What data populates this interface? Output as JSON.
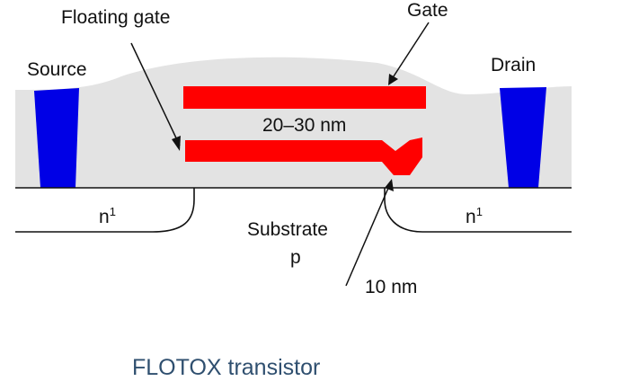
{
  "labels": {
    "floating_gate": "Floating gate",
    "gate": "Gate",
    "source": "Source",
    "drain": "Drain",
    "oxide_thickness": "20–30 nm",
    "n_left_base": "n",
    "n_left_sup": "1",
    "n_right_base": "n",
    "n_right_sup": "1",
    "substrate_line1": "Substrate",
    "substrate_line2": "p",
    "tunnel_oxide": "10 nm"
  },
  "caption": "FLOTOX transistor",
  "colors": {
    "oxide": "#e3e3e3",
    "gate": "#ff0000",
    "contact": "#0000e6",
    "line": "#111111",
    "caption": "#2f4f6f"
  }
}
